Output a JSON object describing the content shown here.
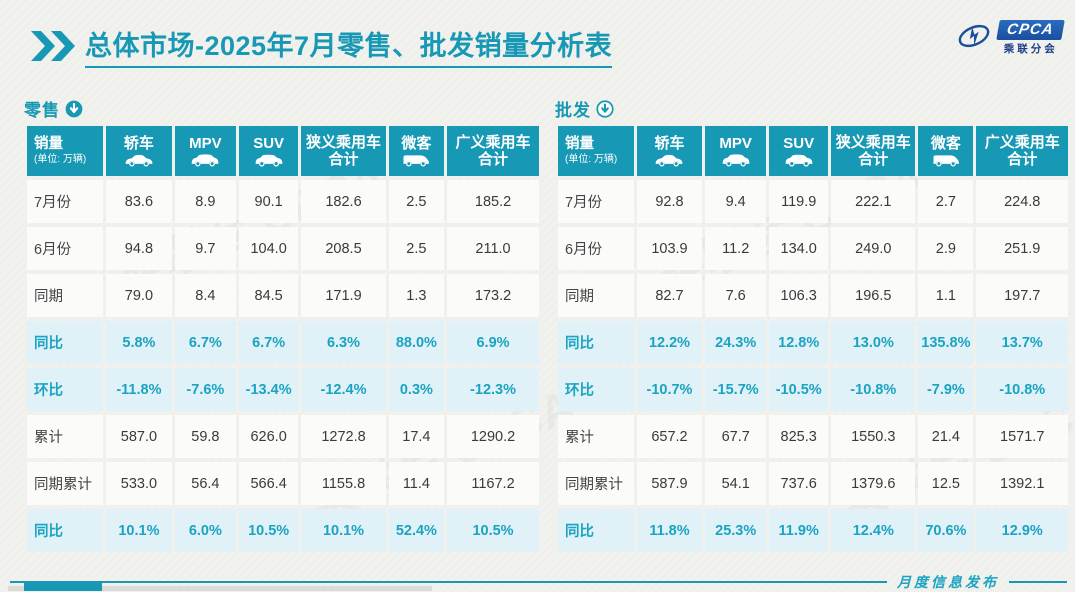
{
  "page": {
    "title_prefix": "总体市场",
    "title_rest": "-2025年7月零售、批发销量分析表",
    "footer_label": "月度信息发布"
  },
  "logo": {
    "acronym": "CPCA",
    "name_cn": "乘联分会"
  },
  "colors": {
    "accent": "#1798b4",
    "highlight_bg": "#e0f2f8",
    "highlight_text": "#1ba3c2",
    "logo_blue": "#1b4f9e",
    "value_text": "#3a3a3a"
  },
  "tables": [
    {
      "id": "retail",
      "section_label": "零售",
      "section_icon": "circle-arrow-down-filled-icon",
      "corner": {
        "title": "销量",
        "unit": "(单位: 万辆)"
      },
      "columns": [
        {
          "lines": [
            "轿车"
          ],
          "icon": "sedan-icon"
        },
        {
          "lines": [
            "MPV"
          ],
          "icon": "mpv-icon"
        },
        {
          "lines": [
            "SUV"
          ],
          "icon": "suv-icon"
        },
        {
          "lines": [
            "狭义乘用车",
            "合计"
          ],
          "icon": null
        },
        {
          "lines": [
            "微客"
          ],
          "icon": "minivan-icon"
        },
        {
          "lines": [
            "广义乘用车",
            "合计"
          ],
          "icon": null
        }
      ],
      "rows": [
        {
          "label": "7月份",
          "type": "plain",
          "values": [
            "83.6",
            "8.9",
            "90.1",
            "182.6",
            "2.5",
            "185.2"
          ]
        },
        {
          "label": "6月份",
          "type": "plain",
          "values": [
            "94.8",
            "9.7",
            "104.0",
            "208.5",
            "2.5",
            "211.0"
          ]
        },
        {
          "label": "同期",
          "type": "plain",
          "values": [
            "79.0",
            "8.4",
            "84.5",
            "171.9",
            "1.3",
            "173.2"
          ]
        },
        {
          "label": "同比",
          "type": "highlight",
          "values": [
            "5.8%",
            "6.7%",
            "6.7%",
            "6.3%",
            "88.0%",
            "6.9%"
          ]
        },
        {
          "label": "环比",
          "type": "highlight",
          "values": [
            "-11.8%",
            "-7.6%",
            "-13.4%",
            "-12.4%",
            "0.3%",
            "-12.3%"
          ]
        },
        {
          "label": "累计",
          "type": "plain",
          "values": [
            "587.0",
            "59.8",
            "626.0",
            "1272.8",
            "17.4",
            "1290.2"
          ]
        },
        {
          "label": "同期累计",
          "type": "plain",
          "values": [
            "533.0",
            "56.4",
            "566.4",
            "1155.8",
            "11.4",
            "1167.2"
          ]
        },
        {
          "label": "同比",
          "type": "highlight",
          "values": [
            "10.1%",
            "6.0%",
            "10.5%",
            "10.1%",
            "52.4%",
            "10.5%"
          ]
        }
      ]
    },
    {
      "id": "wholesale",
      "section_label": "批发",
      "section_icon": "circle-arrow-down-outline-icon",
      "corner": {
        "title": "销量",
        "unit": "(单位: 万辆)"
      },
      "columns": [
        {
          "lines": [
            "轿车"
          ],
          "icon": "sedan-icon"
        },
        {
          "lines": [
            "MPV"
          ],
          "icon": "mpv-icon"
        },
        {
          "lines": [
            "SUV"
          ],
          "icon": "suv-icon"
        },
        {
          "lines": [
            "狭义乘用车",
            "合计"
          ],
          "icon": null
        },
        {
          "lines": [
            "微客"
          ],
          "icon": "minivan-icon"
        },
        {
          "lines": [
            "广义乘用车",
            "合计"
          ],
          "icon": null
        }
      ],
      "rows": [
        {
          "label": "7月份",
          "type": "plain",
          "values": [
            "92.8",
            "9.4",
            "119.9",
            "222.1",
            "2.7",
            "224.8"
          ]
        },
        {
          "label": "6月份",
          "type": "plain",
          "values": [
            "103.9",
            "11.2",
            "134.0",
            "249.0",
            "2.9",
            "251.9"
          ]
        },
        {
          "label": "同期",
          "type": "plain",
          "values": [
            "82.7",
            "7.6",
            "106.3",
            "196.5",
            "1.1",
            "197.7"
          ]
        },
        {
          "label": "同比",
          "type": "highlight",
          "values": [
            "12.2%",
            "24.3%",
            "12.8%",
            "13.0%",
            "135.8%",
            "13.7%"
          ]
        },
        {
          "label": "环比",
          "type": "highlight",
          "values": [
            "-10.7%",
            "-15.7%",
            "-10.5%",
            "-10.8%",
            "-7.9%",
            "-10.8%"
          ]
        },
        {
          "label": "累计",
          "type": "plain",
          "values": [
            "657.2",
            "67.7",
            "825.3",
            "1550.3",
            "21.4",
            "1571.7"
          ]
        },
        {
          "label": "同期累计",
          "type": "plain",
          "values": [
            "587.9",
            "54.1",
            "737.6",
            "1379.6",
            "12.5",
            "1392.1"
          ]
        },
        {
          "label": "同比",
          "type": "highlight",
          "values": [
            "11.8%",
            "25.3%",
            "11.9%",
            "12.4%",
            "70.6%",
            "12.9%"
          ]
        }
      ]
    }
  ]
}
